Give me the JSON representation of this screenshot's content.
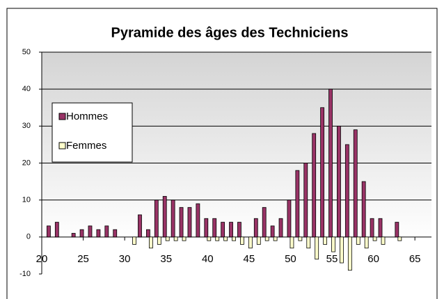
{
  "chart_data": {
    "type": "bar",
    "title": "Pyramide des âges des Techniciens",
    "x": [
      21,
      22,
      24,
      25,
      26,
      27,
      28,
      29,
      31,
      32,
      33,
      34,
      35,
      36,
      37,
      38,
      39,
      40,
      41,
      42,
      43,
      44,
      45,
      46,
      47,
      48,
      49,
      50,
      51,
      52,
      53,
      54,
      55,
      56,
      57,
      58,
      59,
      60,
      61,
      63
    ],
    "series": [
      {
        "name": "Hommes",
        "color": "#993366",
        "values": [
          3,
          4,
          1,
          2,
          3,
          2,
          3,
          2,
          0,
          6,
          2,
          10,
          11,
          10,
          8,
          8,
          9,
          5,
          5,
          4,
          4,
          4,
          0,
          5,
          8,
          3,
          5,
          10,
          18,
          20,
          28,
          35,
          40,
          30,
          25,
          29,
          15,
          5,
          5,
          4
        ]
      },
      {
        "name": "Femmes",
        "color": "#ffffcc",
        "values": [
          0,
          0,
          0,
          0,
          0,
          0,
          0,
          0,
          -2,
          0,
          -3,
          -2,
          -1,
          -1,
          -1,
          0,
          0,
          -1,
          -1,
          -1,
          -1,
          -2,
          -3,
          -2,
          -1,
          -1,
          0,
          -3,
          -1,
          -3,
          -6,
          -2,
          -4,
          -7,
          -9,
          -2,
          -3,
          -1,
          -2,
          -1
        ]
      }
    ],
    "xlim": [
      20,
      67
    ],
    "xticks": [
      20,
      25,
      30,
      35,
      40,
      45,
      50,
      55,
      60,
      65
    ],
    "ylim": [
      -10,
      50
    ],
    "yticks": [
      -10,
      0,
      10,
      20,
      30,
      40,
      50
    ],
    "grid": true,
    "legend": "left"
  }
}
